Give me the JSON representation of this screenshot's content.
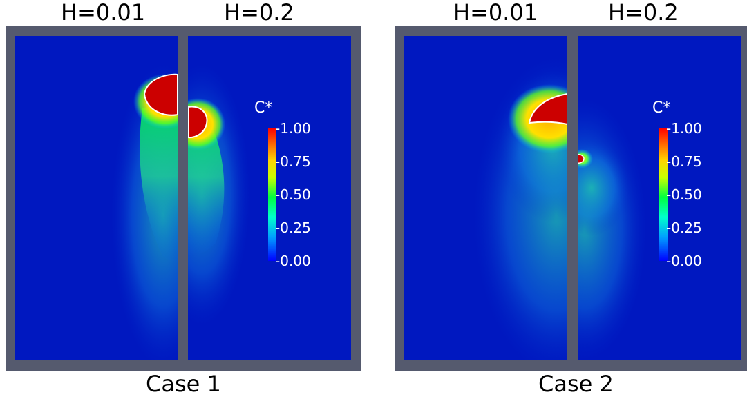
{
  "case1": {
    "caption": "Case 1",
    "left_heading": "H=0.01",
    "right_heading": "H=0.2"
  },
  "case2": {
    "caption": "Case 2",
    "left_heading": "H=0.01",
    "right_heading": "H=0.2"
  },
  "colorbar": {
    "title": "C*",
    "ticks": [
      "1.00",
      "0.75",
      "0.50",
      "0.25",
      "0.00"
    ],
    "colors": {
      "min": "#0000ff",
      "mid_low": "#00ffcc",
      "mid": "#00ff40",
      "mid_high": "#ffd400",
      "max": "#ff0000"
    }
  },
  "colors": {
    "frame": "#555a6e",
    "background_field": "#0018c0",
    "interface": "#ffffff"
  }
}
